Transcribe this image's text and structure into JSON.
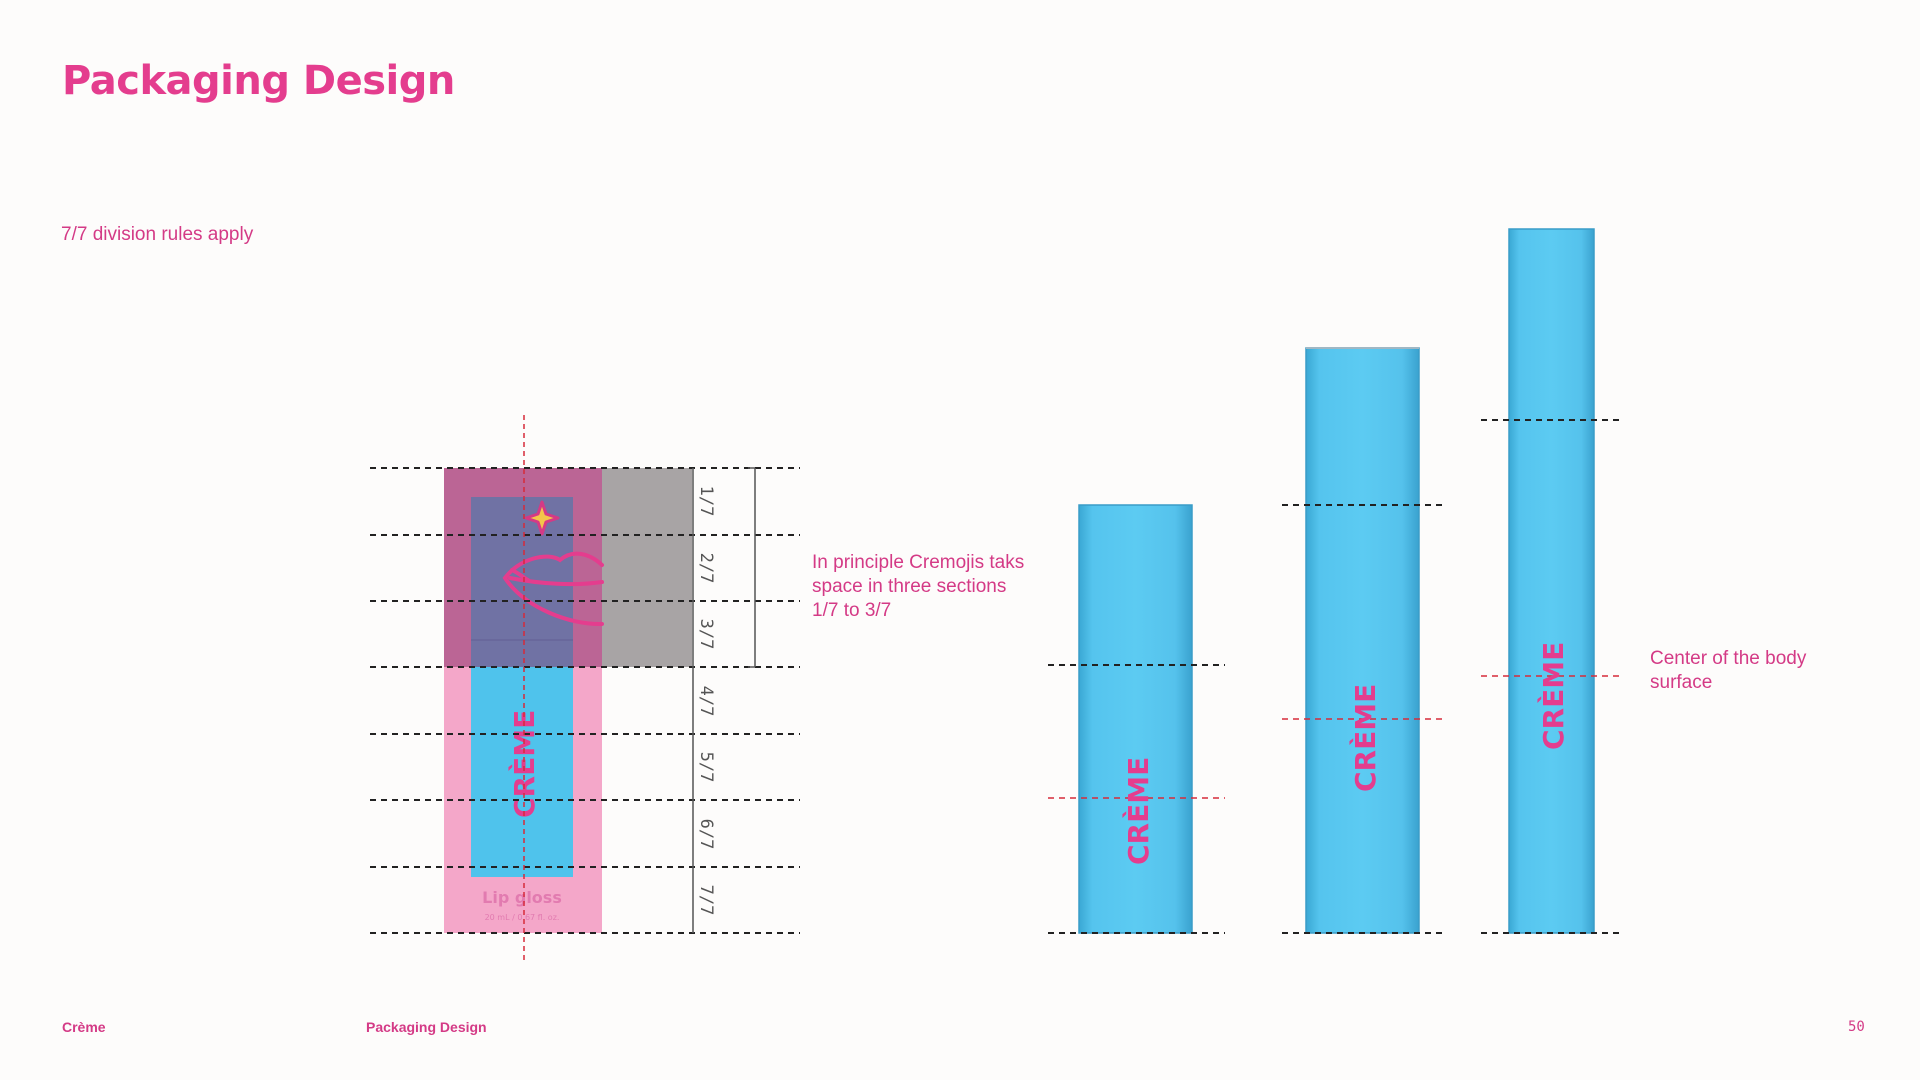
{
  "page": {
    "title": "Packaging Design",
    "subtitle": "7/7 division rules apply"
  },
  "box": {
    "sections": [
      "1/7",
      "2/7",
      "3/7",
      "4/7",
      "5/7",
      "6/7",
      "7/7"
    ],
    "product_name": "Lip gloss",
    "volume": "20 mL / 0.67 fl. oz.",
    "logo": "CRÈME"
  },
  "notes": {
    "cremojis": "In principle Cremojis taks space in three sections 1/7 to 3/7",
    "center": "Center of the body surface"
  },
  "footer": {
    "brand": "Crème",
    "section": "Packaging Design",
    "page_number": "50"
  },
  "colors": {
    "brand_pink": "#e43d8e",
    "tube_blue": "#4fc3ec",
    "box_pink": "#f4a7c9",
    "overlay_purple": "#b06a95",
    "overlay_gray": "#a8a4a5"
  }
}
